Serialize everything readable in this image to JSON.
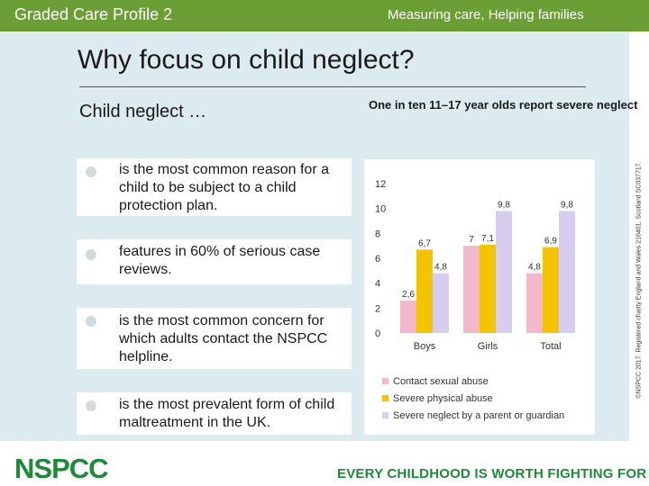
{
  "header": {
    "deck_title": "Graded Care Profile 2",
    "deck_subtitle": "Measuring care, Helping families"
  },
  "slide": {
    "title": "Why focus on child neglect?",
    "section_heading": "Child neglect …",
    "bullets": [
      "is the most common reason for a child to be subject to a child protection plan.",
      "features in 60% of serious case reviews.",
      "is the most common concern for which adults contact the NSPCC helpline.",
      "is the most prevalent form of child maltreatment in the UK."
    ]
  },
  "chart_caption": "One in ten 11–17 year olds report severe neglect",
  "chart_data": {
    "type": "bar",
    "title": "One in ten 11–17 year olds report severe neglect",
    "categories": [
      "Boys",
      "Girls",
      "Total"
    ],
    "series": [
      {
        "name": "Contact sexual abuse",
        "values": [
          2.6,
          7,
          4.8
        ],
        "labels": [
          "2,6",
          "7",
          "4,8"
        ],
        "color": "#f2b9cd"
      },
      {
        "name": "Severe physical abuse",
        "values": [
          6.7,
          7.1,
          6.9
        ],
        "labels": [
          "6,7",
          "7,1",
          "6,9"
        ],
        "color": "#f5c400"
      },
      {
        "name": "Severe neglect by a parent or guardian",
        "values": [
          4.8,
          9.8,
          9.8
        ],
        "labels": [
          "4,8",
          "9,8",
          "9,8"
        ],
        "color": "#d6cdf0"
      }
    ],
    "ylim": [
      0,
      12
    ],
    "yticks": [
      "0",
      "2",
      "4",
      "6",
      "8",
      "10",
      "12"
    ],
    "xlabel": "",
    "ylabel": "",
    "legend_position": "bottom"
  },
  "footer": {
    "logo": "NSPCC",
    "tagline": "EVERY CHILDHOOD IS WORTH FIGHTING FOR"
  },
  "legal": "©NSPCC 2017. Registered charity England and Wales 216401. Scotland SC037717."
}
